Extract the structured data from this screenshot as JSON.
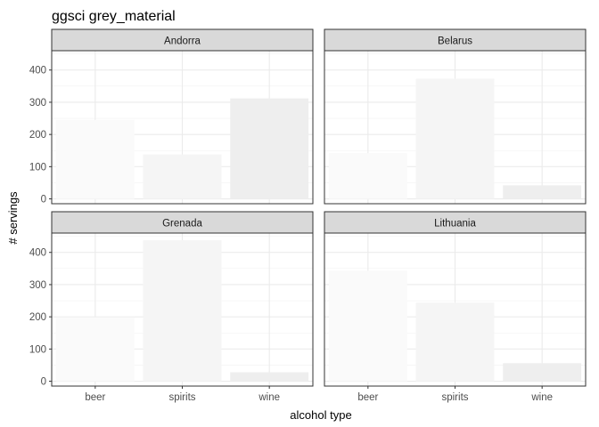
{
  "chart_data": {
    "type": "bar",
    "title": "ggsci grey_material",
    "xlabel": "alcohol type",
    "ylabel": "# servings",
    "categories": [
      "beer",
      "spirits",
      "wine"
    ],
    "bar_colors": [
      "#FAFAFA",
      "#F5F5F5",
      "#EEEEEE"
    ],
    "ylim": [
      -15,
      460
    ],
    "yticks": [
      0,
      100,
      200,
      300,
      400
    ],
    "grid": true,
    "legend": "none",
    "facets": [
      {
        "name": "Andorra",
        "values": [
          245,
          138,
          312
        ]
      },
      {
        "name": "Belarus",
        "values": [
          142,
          373,
          42
        ]
      },
      {
        "name": "Grenada",
        "values": [
          199,
          438,
          28
        ]
      },
      {
        "name": "Lithuania",
        "values": [
          343,
          244,
          56
        ]
      }
    ]
  }
}
